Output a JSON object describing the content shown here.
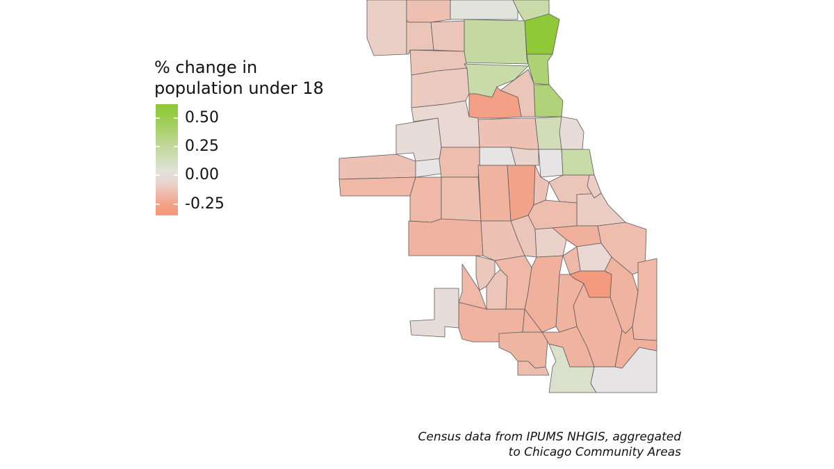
{
  "legend": {
    "title": "% change in\npopulation under 18",
    "colors": {
      "high": "#8cc832",
      "mid": "#e6e4e4",
      "low": "#f59678"
    },
    "ticks": [
      {
        "value": 0.5,
        "label": "0.50"
      },
      {
        "value": 0.25,
        "label": "0.25"
      },
      {
        "value": 0.0,
        "label": "0.00"
      },
      {
        "value": -0.25,
        "label": "-0.25"
      }
    ],
    "range": [
      -0.35,
      0.62
    ]
  },
  "caption": {
    "line1": "Census data from IPUMS NHGIS, aggregated",
    "line2": "to Chicago Community Areas"
  },
  "map_data": {
    "type": "choropleth",
    "regions": [
      {
        "value": -0.08
      },
      {
        "value": -0.14
      },
      {
        "value": 0.02
      },
      {
        "value": 0.2
      },
      {
        "value": 0.22
      },
      {
        "value": 0.58
      },
      {
        "value": 0.38
      },
      {
        "value": 0.36
      },
      {
        "value": -0.12
      },
      {
        "value": -0.12
      },
      {
        "value": -0.12
      },
      {
        "value": -0.1
      },
      {
        "value": 0.2
      },
      {
        "value": -0.12
      },
      {
        "value": -0.26
      },
      {
        "value": -0.05
      },
      {
        "value": -0.03
      },
      {
        "value": 0.15
      },
      {
        "value": -0.13
      },
      {
        "value": -0.03
      },
      {
        "value": -0.13
      },
      {
        "value": -0.17
      },
      {
        "value": 0.0
      },
      {
        "value": -0.06
      },
      {
        "value": 0.0
      },
      {
        "value": 0.2
      },
      {
        "value": 0.0
      },
      {
        "value": -0.15
      },
      {
        "value": -0.17
      },
      {
        "value": -0.14
      },
      {
        "value": -0.19
      },
      {
        "value": -0.25
      },
      {
        "value": -0.13
      },
      {
        "value": -0.12
      },
      {
        "value": -0.09
      },
      {
        "value": -0.15
      },
      {
        "value": -0.19
      },
      {
        "value": -0.13
      },
      {
        "value": -0.12
      },
      {
        "value": -0.07
      },
      {
        "value": -0.2
      },
      {
        "value": -0.15
      },
      {
        "value": -0.05
      },
      {
        "value": -0.11
      },
      {
        "value": -0.12
      },
      {
        "value": -0.17
      },
      {
        "value": -0.2
      },
      {
        "value": -0.17
      },
      {
        "value": -0.28
      },
      {
        "value": -0.19
      },
      {
        "value": -0.19
      },
      {
        "value": -0.19
      },
      {
        "value": -0.17
      },
      {
        "value": -0.19
      },
      {
        "value": -0.18
      },
      {
        "value": -0.19
      },
      {
        "value": -0.19
      },
      {
        "value": -0.2
      },
      {
        "value": -0.17
      },
      {
        "value": 0.08
      },
      {
        "value": 0.0
      },
      {
        "value": -0.03
      },
      {
        "value": -0.15
      },
      {
        "value": -0.09
      }
    ]
  }
}
